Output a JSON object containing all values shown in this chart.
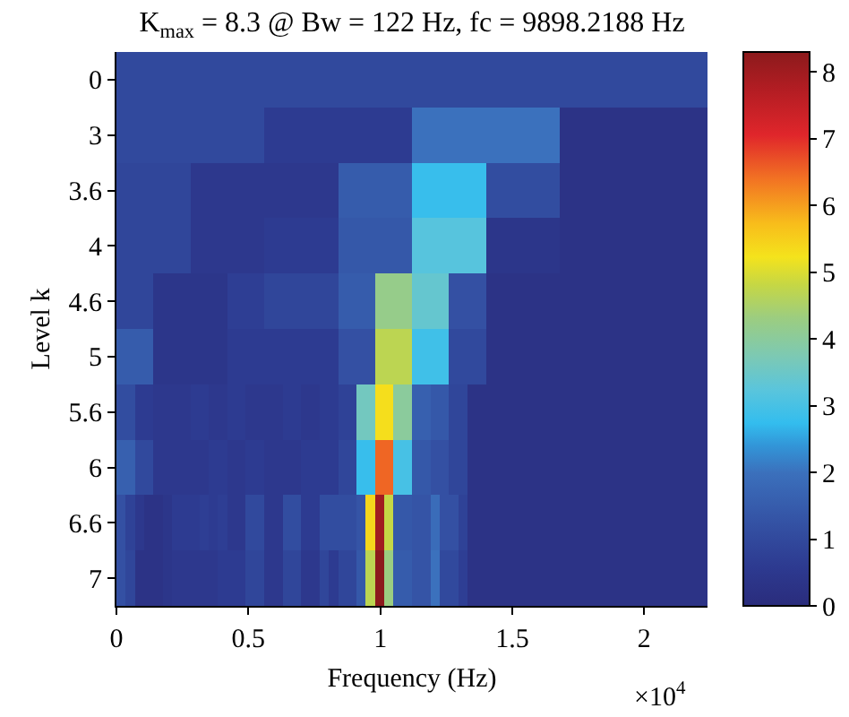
{
  "chart_data": {
    "type": "heatmap",
    "title": "K$_{max}$ = 8.3 @ Bw = 122 Hz, fc = 9898.2188 Hz",
    "xlabel": "Frequency (Hz)",
    "ylabel": "Level k",
    "annotations": [
      "×10$^{4}$"
    ],
    "x": [
      0.0175,
      0.0525,
      0.0875,
      0.1225,
      0.1575,
      0.1925,
      0.2275,
      0.2625,
      0.2975,
      0.3325,
      0.3675,
      0.4025,
      0.4375,
      0.4725,
      0.5075,
      0.5425,
      0.5775,
      0.6125,
      0.6475,
      0.6825,
      0.7175,
      0.7525,
      0.7875,
      0.8225,
      0.8575,
      0.8925,
      0.9275,
      0.9625,
      0.9975,
      1.0325,
      1.0675,
      1.1025,
      1.1375,
      1.1725,
      1.2075,
      1.2425,
      1.2775,
      1.3125,
      1.3475,
      1.3825,
      1.4175,
      1.4525,
      1.4875,
      1.5225,
      1.5575,
      1.5925,
      1.6275,
      1.6625,
      1.6975,
      1.7325,
      1.7675,
      1.8025,
      1.8375,
      1.8725,
      1.9075,
      1.9425,
      1.9775,
      2.0125,
      2.0475,
      2.0825,
      2.1175,
      2.1525,
      2.1875,
      2.2225
    ],
    "xlim": [
      0,
      2.24
    ],
    "xticks": [
      0,
      0.5,
      1,
      1.5,
      2
    ],
    "y_categories": [
      "0",
      "3",
      "3.6",
      "4",
      "4.6",
      "5",
      "5.6",
      "6",
      "6.6",
      "7"
    ],
    "clim": [
      0,
      8.3
    ],
    "cticks": [
      0,
      1,
      2,
      3,
      4,
      5,
      6,
      7,
      8
    ],
    "cells": [
      [
        1.0,
        1.0,
        1.0,
        1.0,
        1.0,
        1.0,
        1.0,
        1.0,
        1.0,
        1.0,
        1.0,
        1.0,
        1.0,
        1.0,
        1.0,
        1.0,
        1.0,
        1.0,
        1.0,
        1.0,
        1.0,
        1.0,
        1.0,
        1.0,
        1.0,
        1.0,
        1.0,
        1.0,
        1.0,
        1.0,
        1.0,
        1.0,
        1.0,
        1.0,
        1.0,
        1.0,
        1.0,
        1.0,
        1.0,
        1.0,
        1.0,
        1.0,
        1.0,
        1.0,
        1.0,
        1.0,
        1.0,
        1.0,
        1.0,
        1.0,
        1.0,
        1.0,
        1.0,
        1.0,
        1.0,
        1.0,
        1.0,
        1.0,
        1.0,
        1.0,
        1.0,
        1.0,
        1.0,
        1.0
      ],
      [
        1.0,
        1.0,
        1.0,
        1.0,
        1.0,
        1.0,
        1.0,
        1.0,
        1.0,
        1.0,
        1.0,
        1.0,
        1.0,
        1.0,
        1.0,
        1.0,
        0.6,
        0.6,
        0.6,
        0.6,
        0.6,
        0.6,
        0.6,
        0.6,
        0.6,
        0.6,
        0.6,
        0.6,
        0.6,
        0.6,
        0.6,
        0.6,
        2.0,
        2.0,
        2.0,
        2.0,
        2.0,
        2.0,
        2.0,
        2.0,
        2.0,
        2.0,
        2.0,
        2.0,
        2.0,
        2.0,
        2.0,
        2.0,
        0.3,
        0.3,
        0.3,
        0.3,
        0.3,
        0.3,
        0.3,
        0.3,
        0.3,
        0.3,
        0.3,
        0.3,
        0.3,
        0.3,
        0.3,
        0.3
      ],
      [
        0.9,
        0.9,
        0.9,
        0.9,
        0.9,
        0.9,
        0.9,
        0.9,
        0.5,
        0.5,
        0.5,
        0.5,
        0.5,
        0.5,
        0.5,
        0.5,
        0.5,
        0.5,
        0.5,
        0.5,
        0.5,
        0.5,
        0.5,
        0.5,
        1.5,
        1.5,
        1.5,
        1.5,
        1.5,
        1.5,
        1.5,
        1.5,
        2.8,
        2.8,
        2.8,
        2.8,
        2.8,
        2.8,
        2.8,
        2.8,
        1.1,
        1.1,
        1.1,
        1.1,
        1.1,
        1.1,
        1.1,
        1.1,
        0.3,
        0.3,
        0.3,
        0.3,
        0.3,
        0.3,
        0.3,
        0.3,
        0.3,
        0.3,
        0.3,
        0.3,
        0.3,
        0.3,
        0.3,
        0.3
      ],
      [
        0.9,
        0.9,
        0.9,
        0.9,
        0.9,
        0.9,
        0.9,
        0.9,
        0.5,
        0.5,
        0.5,
        0.5,
        0.5,
        0.5,
        0.5,
        0.5,
        0.6,
        0.6,
        0.6,
        0.6,
        0.6,
        0.6,
        0.6,
        0.6,
        1.4,
        1.4,
        1.4,
        1.4,
        1.4,
        1.4,
        1.4,
        1.4,
        3.2,
        3.2,
        3.2,
        3.2,
        3.2,
        3.2,
        3.2,
        3.2,
        0.4,
        0.4,
        0.4,
        0.4,
        0.4,
        0.4,
        0.4,
        0.4,
        0.3,
        0.3,
        0.3,
        0.3,
        0.3,
        0.3,
        0.3,
        0.3,
        0.3,
        0.3,
        0.3,
        0.3,
        0.3,
        0.3,
        0.3,
        0.3
      ],
      [
        0.9,
        0.9,
        0.9,
        0.9,
        0.4,
        0.4,
        0.4,
        0.4,
        0.4,
        0.4,
        0.4,
        0.4,
        0.7,
        0.7,
        0.7,
        0.7,
        0.9,
        0.9,
        0.9,
        0.9,
        0.9,
        0.9,
        0.9,
        0.9,
        1.5,
        1.5,
        1.5,
        1.5,
        4.2,
        4.2,
        4.2,
        4.2,
        3.4,
        3.4,
        3.4,
        3.4,
        1.2,
        1.2,
        1.2,
        1.2,
        0.3,
        0.3,
        0.3,
        0.3,
        0.3,
        0.3,
        0.3,
        0.3,
        0.3,
        0.3,
        0.3,
        0.3,
        0.3,
        0.3,
        0.3,
        0.3,
        0.3,
        0.3,
        0.3,
        0.3,
        0.3,
        0.3,
        0.3,
        0.3
      ],
      [
        1.5,
        1.5,
        1.5,
        1.5,
        0.4,
        0.4,
        0.4,
        0.4,
        0.4,
        0.4,
        0.4,
        0.4,
        0.6,
        0.6,
        0.6,
        0.6,
        0.6,
        0.6,
        0.6,
        0.6,
        0.6,
        0.6,
        0.6,
        0.6,
        1.2,
        1.2,
        1.2,
        1.2,
        4.7,
        4.7,
        4.7,
        4.7,
        2.9,
        2.9,
        2.9,
        2.9,
        1.0,
        1.0,
        1.0,
        1.0,
        0.3,
        0.3,
        0.3,
        0.3,
        0.3,
        0.3,
        0.3,
        0.3,
        0.3,
        0.3,
        0.3,
        0.3,
        0.3,
        0.3,
        0.3,
        0.3,
        0.3,
        0.3,
        0.3,
        0.3,
        0.3,
        0.3,
        0.3,
        0.3
      ],
      [
        1.1,
        1.1,
        0.6,
        0.6,
        0.5,
        0.5,
        0.5,
        0.5,
        0.6,
        0.6,
        0.5,
        0.5,
        0.6,
        0.6,
        0.5,
        0.5,
        0.5,
        0.5,
        0.6,
        0.6,
        0.5,
        0.5,
        0.6,
        0.6,
        0.8,
        0.8,
        3.6,
        3.6,
        5.3,
        5.3,
        4.0,
        4.0,
        1.6,
        1.6,
        1.4,
        1.4,
        0.9,
        0.9,
        0.3,
        0.3,
        0.3,
        0.3,
        0.3,
        0.3,
        0.3,
        0.3,
        0.3,
        0.3,
        0.3,
        0.3,
        0.3,
        0.3,
        0.3,
        0.3,
        0.3,
        0.3,
        0.3,
        0.3,
        0.3,
        0.3,
        0.3,
        0.3,
        0.3,
        0.3
      ],
      [
        1.6,
        1.6,
        1.0,
        1.0,
        0.5,
        0.5,
        0.5,
        0.5,
        0.5,
        0.5,
        0.6,
        0.6,
        0.5,
        0.5,
        0.6,
        0.6,
        0.5,
        0.5,
        0.5,
        0.5,
        0.6,
        0.6,
        0.6,
        0.6,
        0.9,
        0.9,
        2.8,
        2.8,
        6.5,
        6.5,
        3.0,
        3.0,
        1.4,
        1.4,
        1.2,
        1.2,
        0.9,
        0.9,
        0.3,
        0.3,
        0.3,
        0.3,
        0.3,
        0.3,
        0.3,
        0.3,
        0.3,
        0.3,
        0.3,
        0.3,
        0.3,
        0.3,
        0.3,
        0.3,
        0.3,
        0.3,
        0.3,
        0.3,
        0.3,
        0.3,
        0.3,
        0.3,
        0.3,
        0.3
      ],
      [
        1.2,
        0.8,
        0.5,
        0.3,
        0.3,
        0.4,
        0.6,
        0.6,
        0.6,
        0.7,
        0.6,
        0.7,
        0.5,
        0.5,
        1.0,
        1.0,
        0.5,
        0.5,
        1.1,
        1.1,
        0.6,
        0.6,
        1.1,
        1.1,
        1.1,
        1.1,
        1.3,
        5.4,
        8.0,
        4.8,
        1.4,
        1.4,
        1.3,
        1.3,
        1.9,
        1.2,
        1.2,
        0.8,
        0.3,
        0.3,
        0.3,
        0.3,
        0.3,
        0.3,
        0.3,
        0.3,
        0.3,
        0.3,
        0.3,
        0.3,
        0.3,
        0.3,
        0.3,
        0.3,
        0.3,
        0.3,
        0.3,
        0.3,
        0.3,
        0.3,
        0.3,
        0.3,
        0.3,
        0.3
      ],
      [
        1.2,
        0.9,
        0.3,
        0.3,
        0.3,
        0.4,
        0.5,
        0.5,
        0.5,
        0.5,
        0.5,
        0.6,
        0.6,
        0.6,
        0.9,
        0.9,
        0.5,
        0.5,
        0.9,
        0.9,
        0.5,
        0.5,
        0.9,
        0.6,
        0.9,
        0.9,
        1.4,
        4.7,
        8.3,
        4.3,
        1.5,
        1.5,
        1.3,
        1.3,
        2.0,
        1.0,
        1.0,
        0.7,
        0.3,
        0.3,
        0.3,
        0.3,
        0.3,
        0.3,
        0.3,
        0.3,
        0.3,
        0.3,
        0.3,
        0.3,
        0.3,
        0.3,
        0.3,
        0.3,
        0.3,
        0.3,
        0.3,
        0.3,
        0.3,
        0.3,
        0.3,
        0.3,
        0.3,
        0.3
      ]
    ]
  }
}
